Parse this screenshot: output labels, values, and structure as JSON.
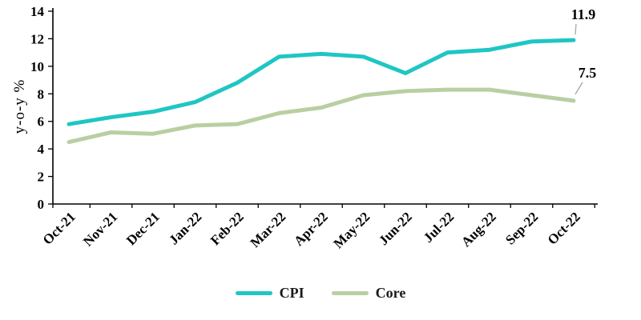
{
  "chart_data": {
    "type": "line",
    "title": "",
    "xlabel": "",
    "ylabel": "y-o-y %",
    "ylim": [
      0,
      14
    ],
    "yticks": [
      0,
      2,
      4,
      6,
      8,
      10,
      12,
      14
    ],
    "grid": false,
    "legend_position": "bottom",
    "categories": [
      "Oct-21",
      "Nov-21",
      "Dec-21",
      "Jan-22",
      "Feb-22",
      "Mar-22",
      "Apr-22",
      "May-22",
      "Jun-22",
      "Jul-22",
      "Aug-22",
      "Sep-22",
      "Oct-22"
    ],
    "series": [
      {
        "name": "CPI",
        "color": "#1fc6c3",
        "width": 5,
        "values": [
          5.8,
          6.3,
          6.7,
          7.4,
          8.8,
          10.7,
          10.9,
          10.7,
          9.5,
          11.0,
          11.2,
          11.8,
          11.9
        ],
        "end_label": "11.9"
      },
      {
        "name": "Core",
        "color": "#b9cfa3",
        "width": 5,
        "values": [
          4.5,
          5.2,
          5.1,
          5.7,
          5.8,
          6.6,
          7.0,
          7.9,
          8.2,
          8.3,
          8.3,
          7.9,
          7.5
        ],
        "end_label": "7.5"
      }
    ],
    "annotation_color": "#a6a6a6"
  }
}
